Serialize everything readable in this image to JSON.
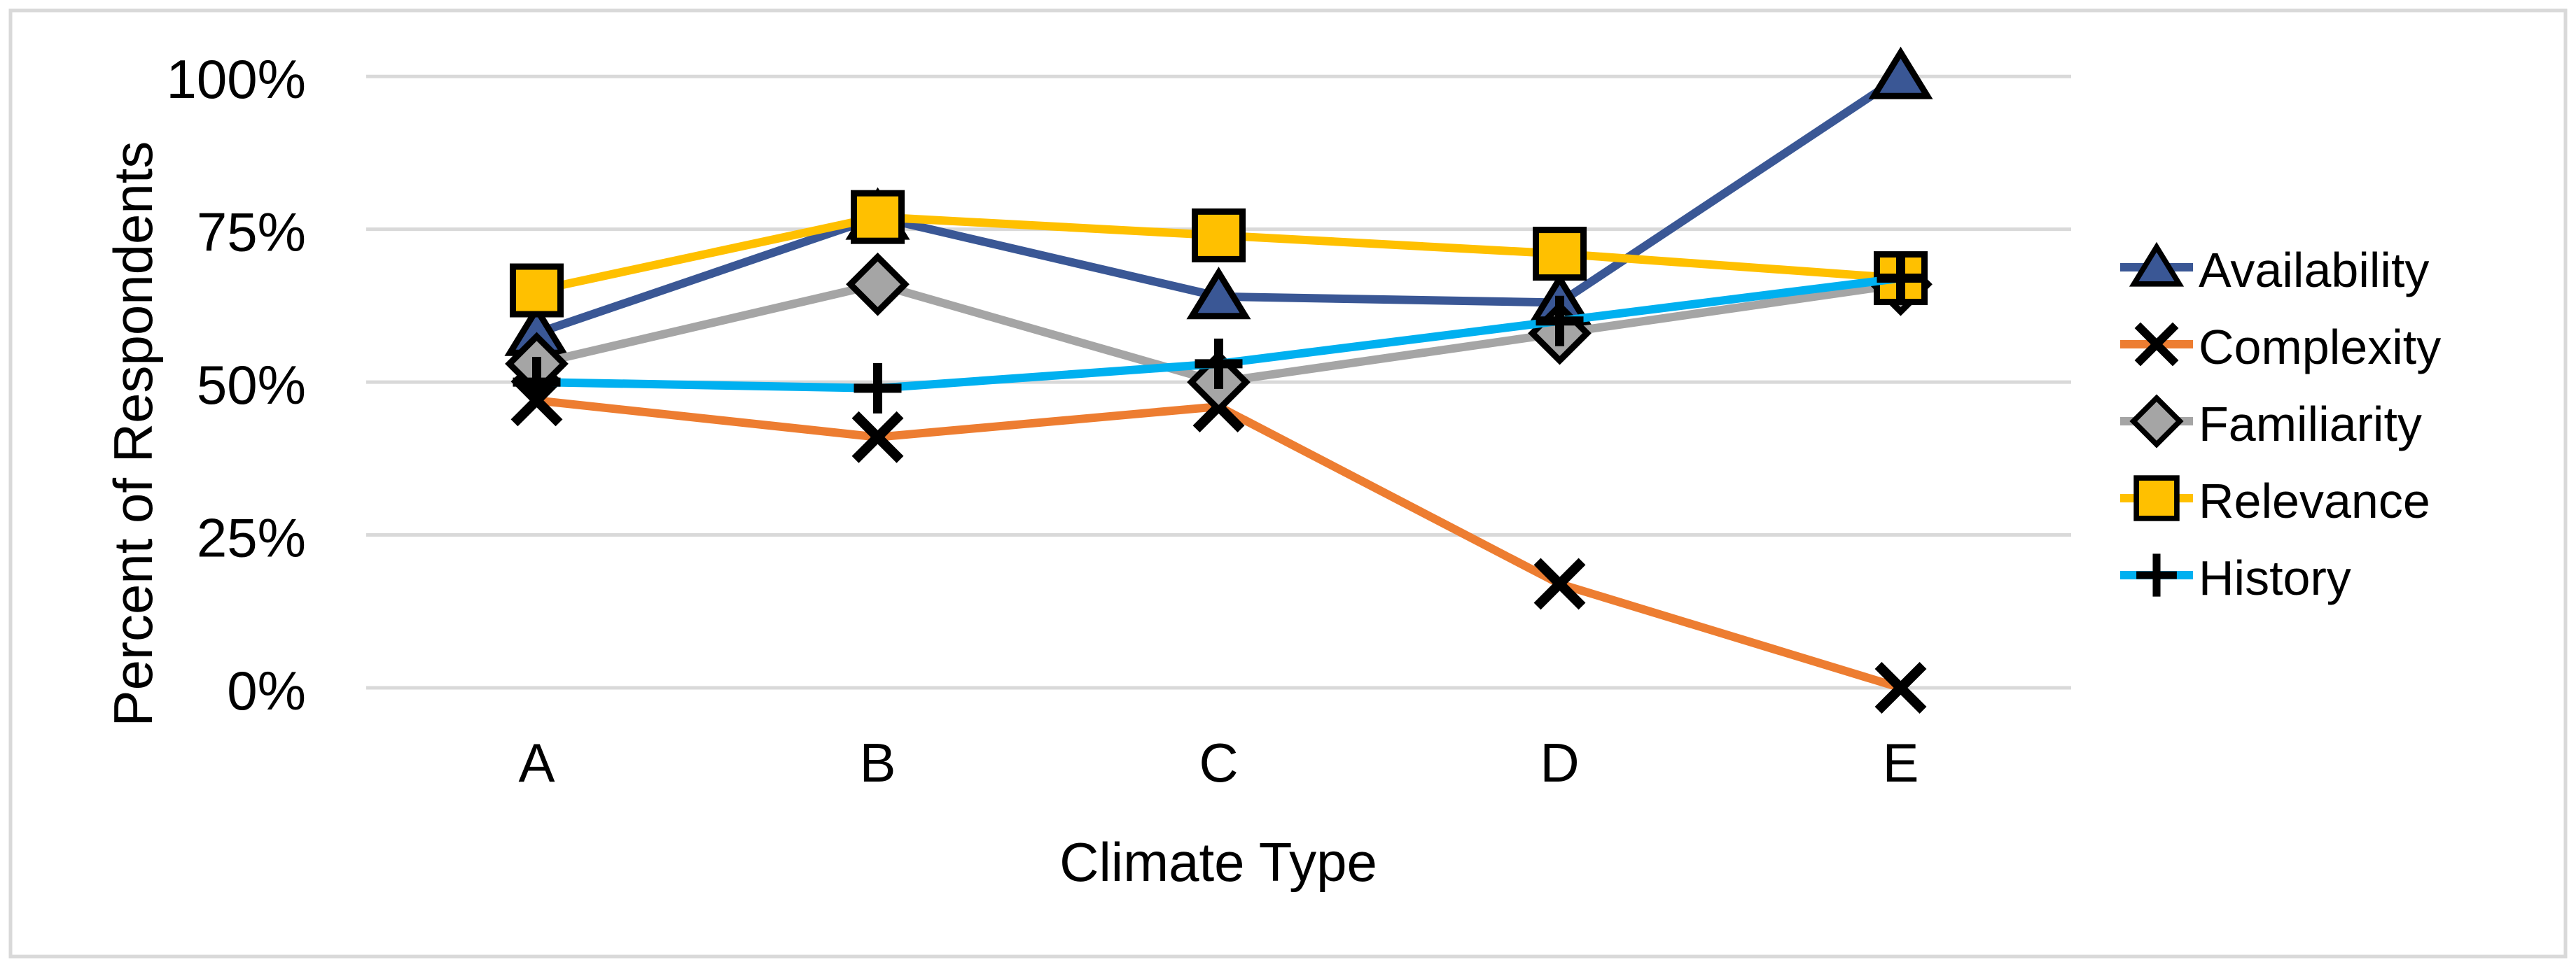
{
  "chart_data": {
    "type": "line",
    "title": "",
    "xlabel": "Climate Type",
    "ylabel": "Percent of Respondents",
    "categories": [
      "A",
      "B",
      "C",
      "D",
      "E"
    ],
    "y_ticks": [
      {
        "label": "100%",
        "value": 100
      },
      {
        "label": "75%",
        "value": 75
      },
      {
        "label": "50%",
        "value": 50
      },
      {
        "label": "25%",
        "value": 25
      },
      {
        "label": "0%",
        "value": 0
      }
    ],
    "ylim": [
      0,
      100
    ],
    "grid": true,
    "legend_position": "right",
    "series": [
      {
        "name": "Availability",
        "marker": "triangle",
        "color": "#3A5795",
        "values": [
          58,
          77,
          64,
          63,
          100
        ]
      },
      {
        "name": "Complexity",
        "marker": "x",
        "color": "#ED7D31",
        "values": [
          47,
          41,
          46,
          17,
          0
        ]
      },
      {
        "name": "Familiarity",
        "marker": "diamond",
        "color": "#A5A5A5",
        "values": [
          53,
          66,
          50,
          58,
          66
        ]
      },
      {
        "name": "Relevance",
        "marker": "square",
        "color": "#FFC000",
        "values": [
          65,
          77,
          74,
          71,
          67
        ]
      },
      {
        "name": "History",
        "marker": "plus",
        "color": "#00B0F0",
        "values": [
          50,
          49,
          53,
          60,
          67
        ]
      }
    ]
  },
  "styles": {
    "background": "#FFFFFF",
    "grid_color": "#D9D9D9",
    "border_color": "#D9D9D9",
    "text_color": "#000000",
    "marker_edge_color": "#000000"
  }
}
